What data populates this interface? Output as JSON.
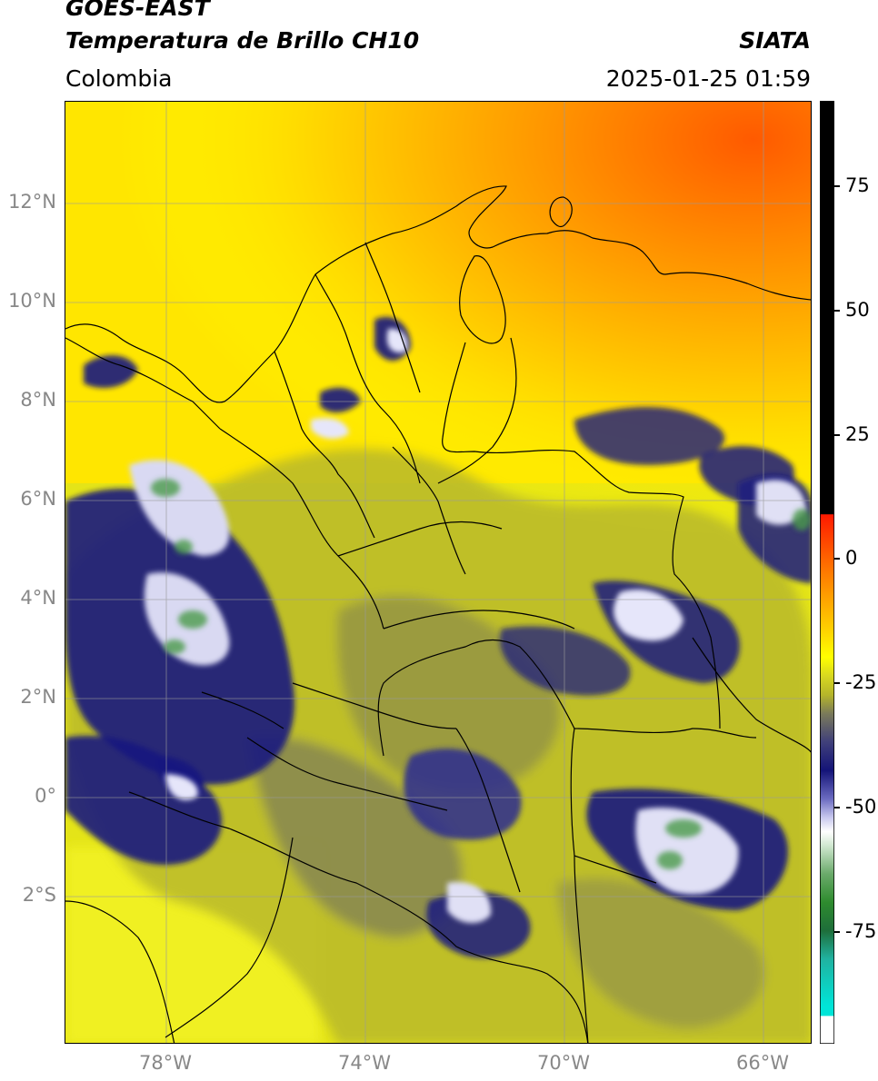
{
  "header": {
    "satellite": "GOES-EAST",
    "product": "Temperatura de Brillo CH10",
    "organization": "SIATA",
    "region": "Colombia",
    "datetime": "2025-01-25 01:59"
  },
  "axes": {
    "lat_labels": [
      "12°N",
      "10°N",
      "8°N",
      "6°N",
      "4°N",
      "2°N",
      "0°",
      "2°S"
    ],
    "lon_labels": [
      "78°W",
      "74°W",
      "70°W",
      "66°W"
    ]
  },
  "colorbar": {
    "ticks": [
      "75",
      "50",
      "25",
      "0",
      "-25",
      "-50",
      "-75"
    ],
    "colors": {
      "black": "#000000",
      "red": "#ff1a00",
      "orange": "#ff8c00",
      "yellow": "#ffff00",
      "olive": "#b5b52a",
      "gray": "#6e6e5a",
      "navy": "#141478",
      "white": "#ffffff",
      "green": "#2e8b2e",
      "cyan": "#00e5d8"
    }
  }
}
